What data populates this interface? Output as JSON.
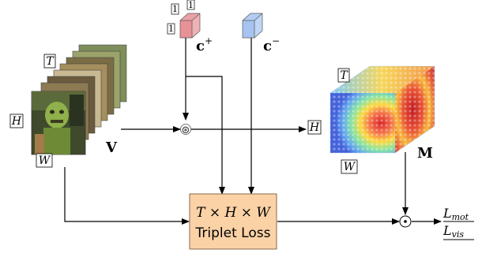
{
  "video": {
    "symbol": "V",
    "dim_t": "T",
    "dim_h": "H",
    "dim_w": "W"
  },
  "conditions": {
    "pos_symbol": "c",
    "pos_sup": "+",
    "neg_symbol": "c",
    "neg_sup": "−",
    "ones": [
      "1",
      "1",
      "1"
    ],
    "pos_color": "#e79297",
    "neg_color": "#a7c3f0"
  },
  "operator_conv": "⊛",
  "operator_dot": "⊙",
  "mid_dim": "H",
  "mask": {
    "symbol": "M",
    "dim_t": "T",
    "dim_w": "W"
  },
  "loss_box": {
    "dims": "T × H × W",
    "title": "Triplet Loss",
    "fill": "#fbd2a6",
    "stroke": "#8a6a4a"
  },
  "outputs": {
    "mot_main": "L",
    "mot_sub": "mot",
    "vis_main": "L",
    "vis_sub": "vis"
  }
}
